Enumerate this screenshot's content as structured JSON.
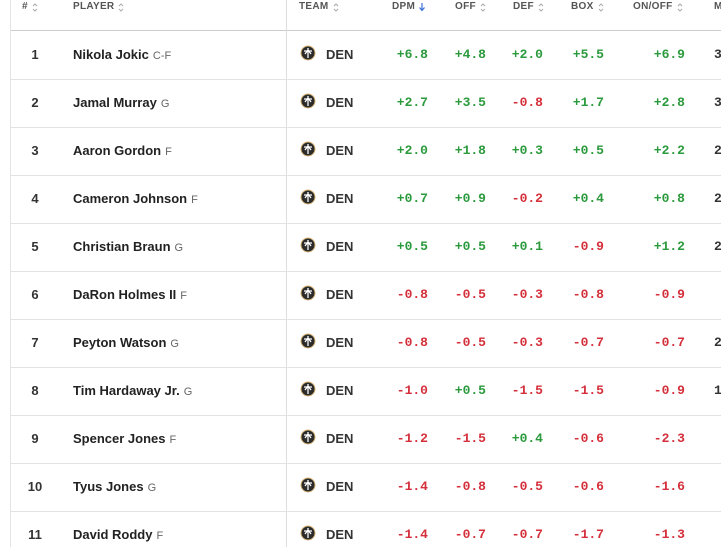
{
  "table": {
    "headers": [
      "#",
      "PLAYER",
      "TEAM",
      "DPM",
      "OFF",
      "DEF",
      "BOX",
      "ON/OFF",
      "M"
    ],
    "rows": [
      {
        "rank": "1",
        "name": "Nikola Jokic",
        "position": "C-F",
        "team": "DEN",
        "dpm": "+6.8",
        "off": "+4.8",
        "def": "+2.0",
        "box": "+5.5",
        "onoff": "+6.9",
        "extra": "3"
      },
      {
        "rank": "2",
        "name": "Jamal Murray",
        "position": "G",
        "team": "DEN",
        "dpm": "+2.7",
        "off": "+3.5",
        "def": "-0.8",
        "box": "+1.7",
        "onoff": "+2.8",
        "extra": "3"
      },
      {
        "rank": "3",
        "name": "Aaron Gordon",
        "position": "F",
        "team": "DEN",
        "dpm": "+2.0",
        "off": "+1.8",
        "def": "+0.3",
        "box": "+0.5",
        "onoff": "+2.2",
        "extra": "2"
      },
      {
        "rank": "4",
        "name": "Cameron Johnson",
        "position": "F",
        "team": "DEN",
        "dpm": "+0.7",
        "off": "+0.9",
        "def": "-0.2",
        "box": "+0.4",
        "onoff": "+0.8",
        "extra": "2"
      },
      {
        "rank": "5",
        "name": "Christian Braun",
        "position": "G",
        "team": "DEN",
        "dpm": "+0.5",
        "off": "+0.5",
        "def": "+0.1",
        "box": "-0.9",
        "onoff": "+1.2",
        "extra": "2"
      },
      {
        "rank": "6",
        "name": "DaRon Holmes II",
        "position": "F",
        "team": "DEN",
        "dpm": "-0.8",
        "off": "-0.5",
        "def": "-0.3",
        "box": "-0.8",
        "onoff": "-0.9"
      },
      {
        "rank": "7",
        "name": "Peyton Watson",
        "position": "G",
        "team": "DEN",
        "dpm": "-0.8",
        "off": "-0.5",
        "def": "-0.3",
        "box": "-0.7",
        "onoff": "-0.7",
        "extra": "2"
      },
      {
        "rank": "8",
        "name": "Tim Hardaway Jr.",
        "position": "G",
        "team": "DEN",
        "dpm": "-1.0",
        "off": "+0.5",
        "def": "-1.5",
        "box": "-1.5",
        "onoff": "-0.9",
        "extra": "1"
      },
      {
        "rank": "9",
        "name": "Spencer Jones",
        "position": "F",
        "team": "DEN",
        "dpm": "-1.2",
        "off": "-1.5",
        "def": "+0.4",
        "box": "-0.6",
        "onoff": "-2.3"
      },
      {
        "rank": "10",
        "name": "Tyus Jones",
        "position": "G",
        "team": "DEN",
        "dpm": "-1.4",
        "off": "-0.8",
        "def": "-0.5",
        "box": "-0.6",
        "onoff": "-1.6"
      },
      {
        "rank": "11",
        "name": "David Roddy",
        "position": "F",
        "team": "DEN",
        "dpm": "-1.4",
        "off": "-0.7",
        "def": "-0.7",
        "box": "-1.7",
        "onoff": "-1.3"
      }
    ]
  }
}
